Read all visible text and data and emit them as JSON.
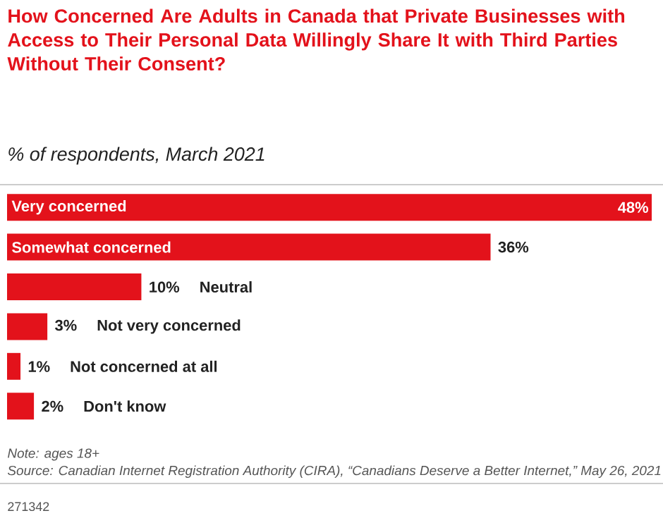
{
  "chart_data": {
    "type": "bar",
    "orientation": "horizontal",
    "title": "How Concerned Are Adults in Canada that Private Businesses with Access to Their Personal Data Willingly Share It with Third Parties Without Their Consent?",
    "subtitle": "% of respondents, March 2021",
    "categories": [
      "Very concerned",
      "Somewhat concerned",
      "Neutral",
      "Not very concerned",
      "Not concerned at all",
      "Don't know"
    ],
    "values": [
      48,
      36,
      10,
      3,
      1,
      2
    ],
    "value_labels": [
      "48%",
      "36%",
      "10%",
      "3%",
      "1%",
      "2%"
    ],
    "color": "#e3121b",
    "annotations": [
      "Note: ages 18+",
      "Source: Canadian Internet Registration Authority (CIRA), “Canadians Deserve a Better Internet,” May 26, 2021",
      "271342"
    ]
  }
}
